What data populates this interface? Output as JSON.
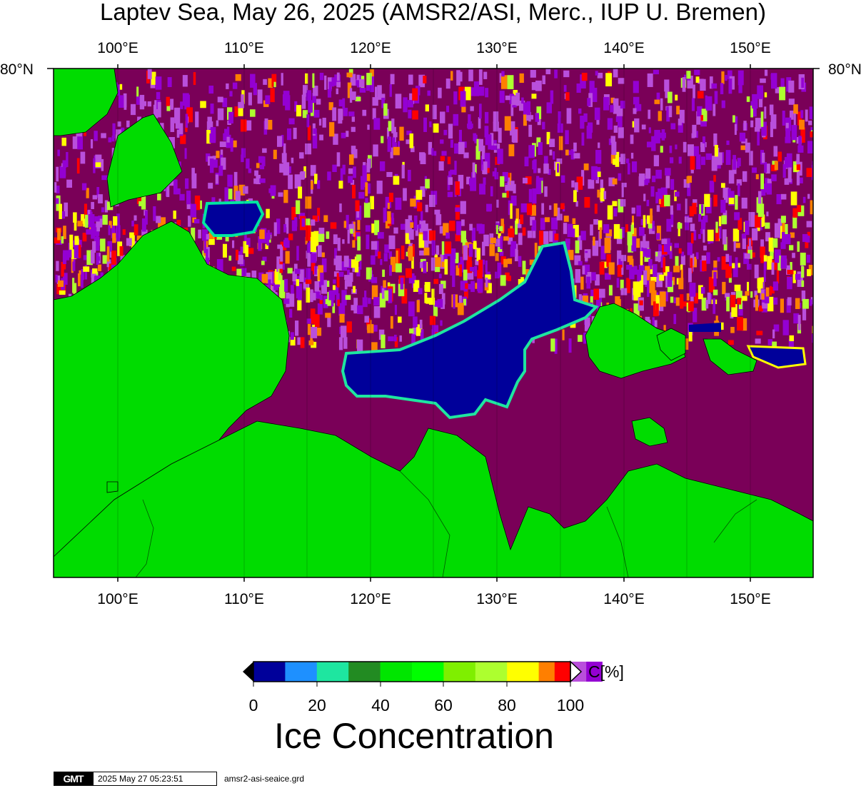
{
  "title": "Laptev Sea, May 26, 2025 (AMSR2/ASI, Merc., IUP U. Bremen)",
  "lon_labels": [
    "100°E",
    "110°E",
    "120°E",
    "130°E",
    "140°E",
    "150°E"
  ],
  "lat_labels": {
    "left": "80°N",
    "right": "80°N"
  },
  "colorbar": {
    "unit_label": "C[%]",
    "ticks": [
      "0",
      "20",
      "40",
      "60",
      "80",
      "100"
    ],
    "colors": [
      "#00009a",
      "#1e90ff",
      "#1ee6a0",
      "#228b22",
      "#00e600",
      "#00ff00",
      "#7fef00",
      "#adff2f",
      "#ffff00",
      "#ff7f00",
      "#ff0000",
      "#b94fdc",
      "#9400d3"
    ],
    "title": "Ice Concentration"
  },
  "legend_colors": {
    "land": "#00dc00",
    "ice_high": "#7a0058",
    "open_water": "#00009a",
    "ice_purple": "#9400d3"
  },
  "footer": {
    "logo": "GMT",
    "timestamp": "2025 May 27 05:23:51",
    "filename": "amsr2-asi-seaice.grd"
  }
}
